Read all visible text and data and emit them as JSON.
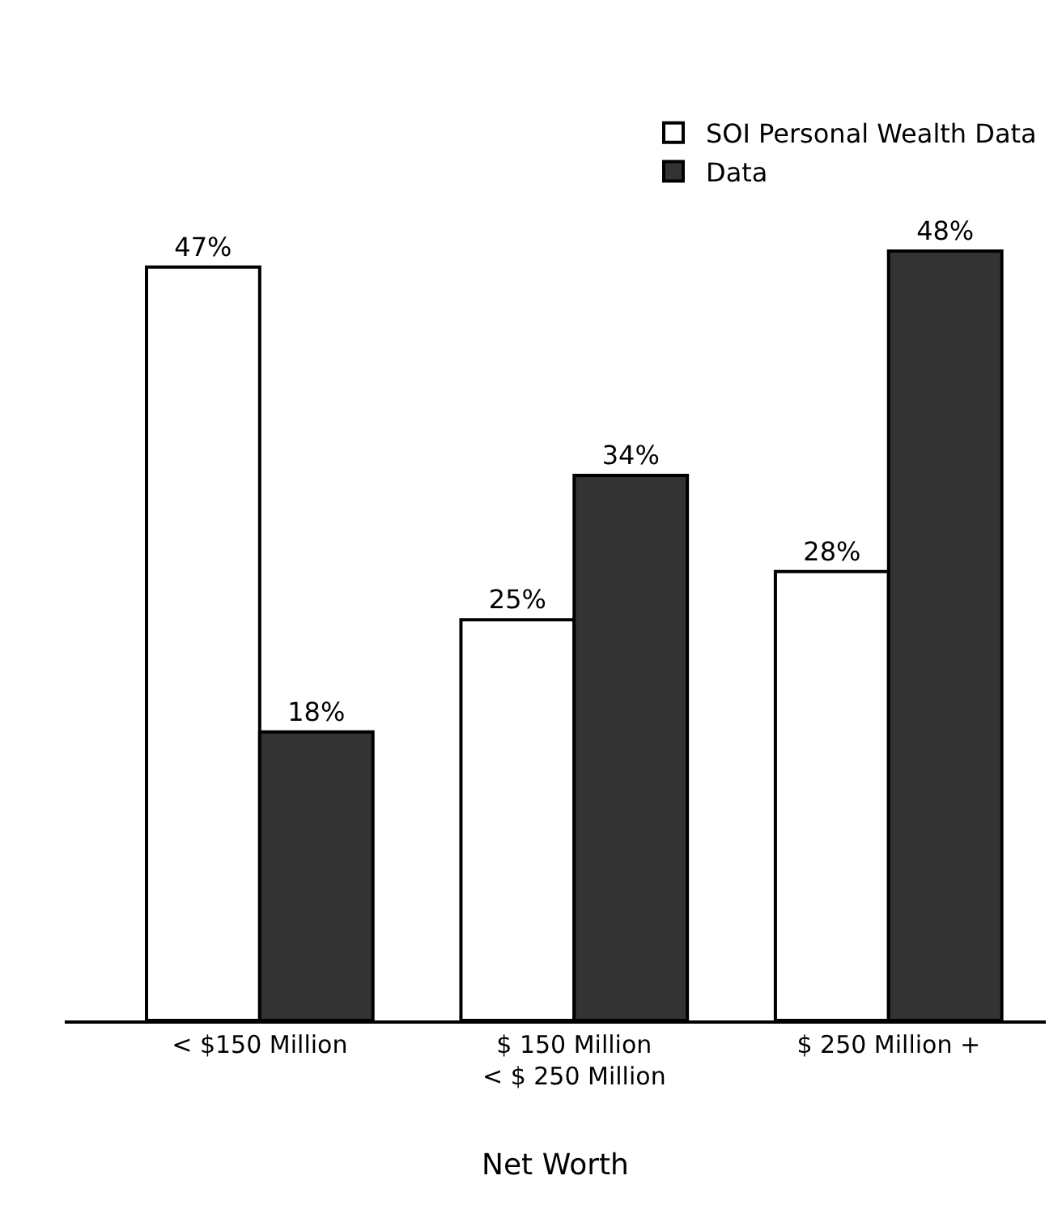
{
  "chart_data": {
    "type": "bar",
    "xlabel": "Net Worth",
    "categories": [
      "< $150 Million",
      "$ 150 Million\n< $ 250 Million",
      "$ 250 Million +"
    ],
    "series": [
      {
        "name": "SOI Personal Wealth Data",
        "color": "#ffffff",
        "values": [
          47,
          25,
          28
        ],
        "value_labels": [
          "47%",
          "25%",
          "28%"
        ]
      },
      {
        "name": "Data",
        "color": "#333333",
        "values": [
          18,
          34,
          48
        ],
        "value_labels": [
          "18%",
          "34%",
          "48%"
        ]
      }
    ],
    "tick_labels": "x",
    "grid": false,
    "legend": "top right"
  }
}
